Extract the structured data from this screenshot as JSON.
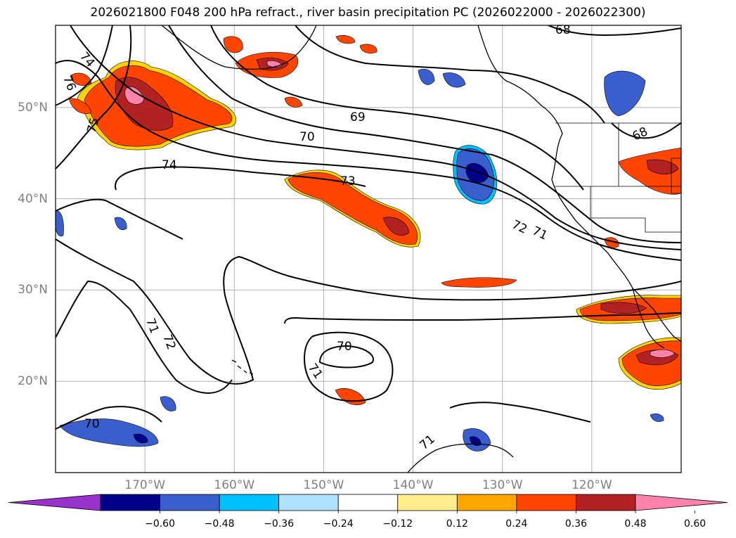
{
  "title": "2026021800 F048 200 hPa refract., river basin precipitation PC (2026022000 - 2026022300)",
  "map": {
    "lon_range": [
      -180,
      -110
    ],
    "lat_range": [
      10,
      59
    ],
    "lon_ticks": [
      "170°W",
      "160°W",
      "150°W",
      "140°W",
      "130°W",
      "120°W"
    ],
    "lon_tick_values": [
      -170,
      -160,
      -150,
      -140,
      -130,
      -120
    ],
    "lat_ticks": [
      "20°N",
      "30°N",
      "40°N",
      "50°N"
    ],
    "lat_tick_values": [
      20,
      30,
      40,
      50
    ],
    "gridlines": true,
    "contour_field": "200 hPa refractivity",
    "contour_labels": [
      "68",
      "69",
      "70",
      "71",
      "72",
      "73",
      "74",
      "75",
      "76",
      "68",
      "70",
      "70",
      "71",
      "71",
      "72",
      "74",
      "71"
    ],
    "shaded_field": "river basin precipitation PC"
  },
  "colorbar": {
    "ticks": [
      "−0.60",
      "−0.48",
      "−0.36",
      "−0.24",
      "−0.12",
      "0.12",
      "0.24",
      "0.36",
      "0.48",
      "0.60"
    ],
    "colors": [
      "#9932cc",
      "#00008b",
      "#3a5fcd",
      "#00bfff",
      "#b0e2ff",
      "#ffffff",
      "#ffec8b",
      "#ffa500",
      "#ff4500",
      "#b22222",
      "#ff82ab"
    ],
    "extend": "both"
  }
}
